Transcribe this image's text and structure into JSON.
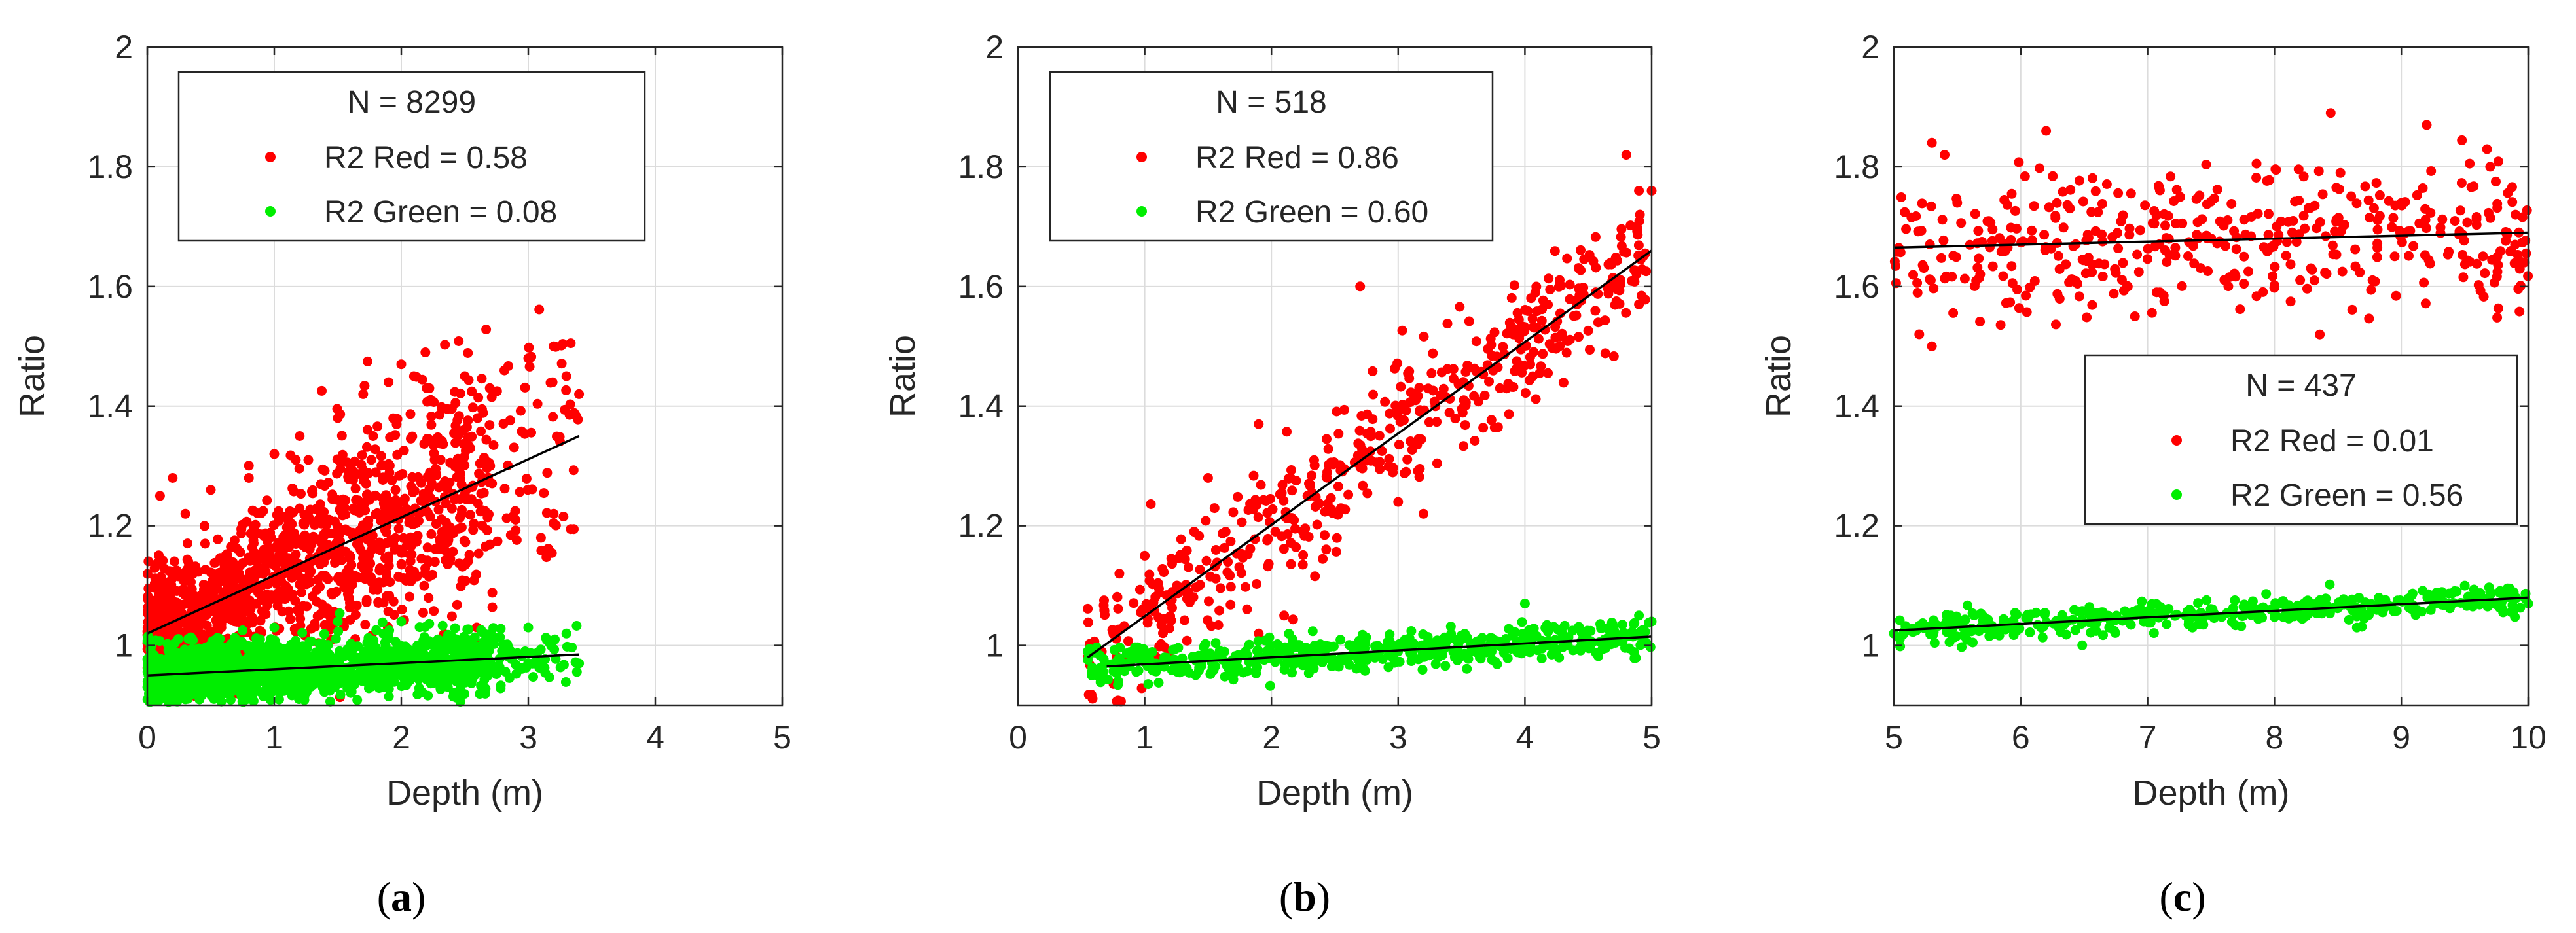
{
  "figure": {
    "colors": {
      "red": "#ff0000",
      "green": "#00ee00",
      "fit": "#000000",
      "grid": "#dcdcdc",
      "axis": "#262626"
    }
  },
  "chart_data": [
    {
      "id": "a",
      "type": "scatter",
      "caption": {
        "open": "(",
        "letter": "a",
        "close": ")"
      },
      "xlabel": "Depth (m)",
      "ylabel": "Ratio",
      "xlim": [
        0,
        5
      ],
      "ylim": [
        0.9,
        2
      ],
      "xticks": [
        0,
        1,
        2,
        3,
        4,
        5
      ],
      "yticks": [
        1,
        1.2,
        1.4,
        1.6,
        1.8,
        2
      ],
      "ytick_labels": [
        "1",
        "1.2",
        "1.4",
        "1.6",
        "1.8",
        "2"
      ],
      "grid": true,
      "legend": {
        "position": "top-left",
        "title": "N = 8299",
        "entries": [
          {
            "label": "R2 Red = 0.58",
            "series": "red"
          },
          {
            "label": "R2 Green = 0.08",
            "series": "green"
          }
        ]
      },
      "series": [
        {
          "name": "Red",
          "color": "#ff0000",
          "n": 8299,
          "r2": 0.58,
          "x_range": [
            0,
            3.4
          ],
          "trend": {
            "x0": 0,
            "y0": 1.02,
            "x1": 3.4,
            "y1": 1.35
          },
          "spread": 0.07,
          "sample_points": [
            [
              0.1,
              1.25
            ],
            [
              0.2,
              1.28
            ],
            [
              0.3,
              1.22
            ],
            [
              0.5,
              1.26
            ],
            [
              0.8,
              1.28
            ],
            [
              1.0,
              1.32
            ],
            [
              1.2,
              1.35
            ],
            [
              1.5,
              1.38
            ],
            [
              1.7,
              1.42
            ],
            [
              1.9,
              1.44
            ],
            [
              2.0,
              1.47
            ],
            [
              2.1,
              1.45
            ],
            [
              2.2,
              1.43
            ],
            [
              2.5,
              1.45
            ],
            [
              2.6,
              1.38
            ],
            [
              2.7,
              1.3
            ],
            [
              3.0,
              1.48
            ],
            [
              3.2,
              1.5
            ],
            [
              3.3,
              1.45
            ],
            [
              3.4,
              1.42
            ],
            [
              3.2,
              1.22
            ],
            [
              2.9,
              1.21
            ],
            [
              3.1,
              1.18
            ]
          ]
        },
        {
          "name": "Green",
          "color": "#00ee00",
          "n": 8299,
          "r2": 0.08,
          "x_range": [
            0,
            3.4
          ],
          "trend": {
            "x0": 0,
            "y0": 0.95,
            "x1": 3.4,
            "y1": 0.985
          },
          "spread": 0.025,
          "sample_points": [
            [
              0.3,
              0.91
            ],
            [
              0.6,
              0.92
            ],
            [
              1.0,
              1.03
            ],
            [
              1.5,
              1.04
            ],
            [
              2.0,
              1.04
            ],
            [
              3.0,
              1.03
            ],
            [
              3.3,
              1.02
            ],
            [
              3.4,
              0.97
            ]
          ]
        }
      ]
    },
    {
      "id": "b",
      "type": "scatter",
      "caption": {
        "open": "(",
        "letter": "b",
        "close": ")"
      },
      "xlabel": "Depth (m)",
      "ylabel": "Ratio",
      "xlim": [
        0,
        5
      ],
      "ylim": [
        0.9,
        2
      ],
      "xticks": [
        0,
        1,
        2,
        3,
        4,
        5
      ],
      "yticks": [
        1,
        1.2,
        1.4,
        1.6,
        1.8,
        2
      ],
      "ytick_labels": [
        "1",
        "1.2",
        "1.4",
        "1.6",
        "1.8",
        "2"
      ],
      "grid": true,
      "legend": {
        "position": "top-left",
        "title": "N = 518",
        "entries": [
          {
            "label": "R2 Red = 0.86",
            "series": "red"
          },
          {
            "label": "R2 Green = 0.60",
            "series": "green"
          }
        ]
      },
      "series": [
        {
          "name": "Red",
          "color": "#ff0000",
          "n": 518,
          "r2": 0.86,
          "x_range": [
            0.55,
            5
          ],
          "trend": {
            "x0": 0.55,
            "y0": 0.98,
            "x1": 5,
            "y1": 1.66
          },
          "spread": 0.055,
          "sample_points": [
            [
              0.55,
              0.98
            ],
            [
              0.8,
              1.12
            ],
            [
              1.0,
              1.15
            ],
            [
              1.5,
              1.28
            ],
            [
              1.9,
              1.37
            ],
            [
              2.7,
              1.6
            ],
            [
              4.8,
              1.82
            ],
            [
              4.9,
              1.76
            ],
            [
              5.0,
              1.76
            ],
            [
              3.2,
              1.22
            ],
            [
              2.1,
              1.05
            ],
            [
              1.9,
              1.02
            ],
            [
              3.0,
              1.24
            ],
            [
              4.9,
              1.57
            ]
          ]
        },
        {
          "name": "Green",
          "color": "#00ee00",
          "n": 518,
          "r2": 0.6,
          "x_range": [
            0.55,
            5
          ],
          "trend": {
            "x0": 0.7,
            "y0": 0.965,
            "x1": 5,
            "y1": 1.015
          },
          "spread": 0.014,
          "sample_points": [
            [
              0.55,
              0.99
            ],
            [
              4.0,
              1.07
            ],
            [
              4.9,
              1.05
            ],
            [
              5.0,
              1.04
            ]
          ]
        }
      ]
    },
    {
      "id": "c",
      "type": "scatter",
      "caption": {
        "open": "(",
        "letter": "c",
        "close": ")"
      },
      "xlabel": "Depth (m)",
      "ylabel": "Ratio",
      "xlim": [
        5,
        10
      ],
      "ylim": [
        0.9,
        2
      ],
      "xticks": [
        5,
        6,
        7,
        8,
        9,
        10
      ],
      "yticks": [
        1,
        1.2,
        1.4,
        1.6,
        1.8,
        2
      ],
      "ytick_labels": [
        "1",
        "1.2",
        "1.4",
        "1.6",
        "1.8",
        "2"
      ],
      "grid": true,
      "legend": {
        "position": "center-right",
        "title": "N = 437",
        "entries": [
          {
            "label": "R2 Red = 0.01",
            "series": "red"
          },
          {
            "label": "R2 Green = 0.56",
            "series": "green"
          }
        ]
      },
      "series": [
        {
          "name": "Red",
          "color": "#ff0000",
          "n": 437,
          "r2": 0.01,
          "x_range": [
            5,
            10
          ],
          "trend": {
            "x0": 5,
            "y0": 1.665,
            "x1": 10,
            "y1": 1.69
          },
          "spread": 0.06,
          "sample_points": [
            [
              5.3,
              1.84
            ],
            [
              5.4,
              1.82
            ],
            [
              6.2,
              1.86
            ],
            [
              9.2,
              1.87
            ],
            [
              9.7,
              1.8
            ],
            [
              5.3,
              1.5
            ],
            [
              5.2,
              1.52
            ],
            [
              6.9,
              1.55
            ],
            [
              9.9,
              1.72
            ]
          ]
        },
        {
          "name": "Green",
          "color": "#00ee00",
          "n": 437,
          "r2": 0.56,
          "x_range": [
            5,
            10
          ],
          "trend": {
            "x0": 5,
            "y0": 1.025,
            "x1": 10,
            "y1": 1.08
          },
          "spread": 0.012,
          "sample_points": [
            [
              5.0,
              1.02
            ],
            [
              9.5,
              1.1
            ],
            [
              9.7,
              1.09
            ],
            [
              10.0,
              1.07
            ]
          ]
        }
      ]
    }
  ]
}
